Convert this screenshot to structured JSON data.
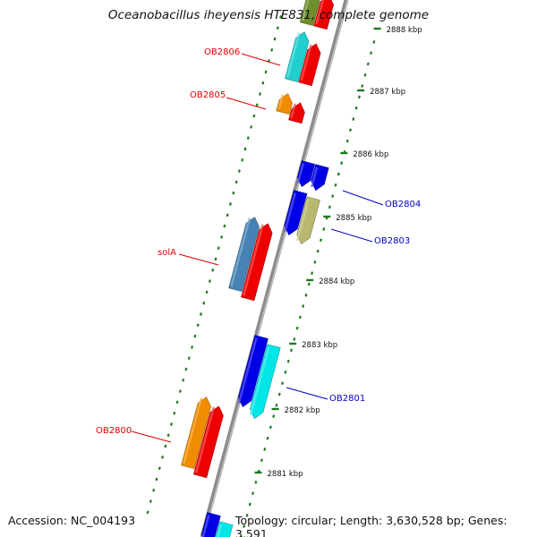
{
  "title": "Oceanobacillus iheyensis HTE831, complete genome",
  "footer": {
    "accession": "Accession: NC_004193",
    "summary": "Topology: circular; Length: 3,630,528 bp; Genes: 3,591"
  },
  "colors": {
    "backbone": "#8c8c8c",
    "tick": "#1e7a1e",
    "forward_label": "#e00000",
    "reverse_label": "#0000c8",
    "scale_text": "#111111"
  },
  "scale_labels": [
    "2888 kbp",
    "2887 kbp",
    "2886 kbp",
    "2885 kbp",
    "2884 kbp",
    "2883 kbp",
    "2882 kbp",
    "2881 kbp"
  ],
  "genes": [
    {
      "strand": "forward",
      "lane": 1,
      "start": 0.0,
      "end": 0.06,
      "color": "#6f8f2a"
    },
    {
      "strand": "forward",
      "lane": 2,
      "start": 0.0,
      "end": 0.06,
      "color": "#ee0000"
    },
    {
      "strand": "forward",
      "lane": 1,
      "start": 0.075,
      "end": 0.165,
      "color": "#22cfcf"
    },
    {
      "strand": "forward",
      "lane": 2,
      "start": 0.09,
      "end": 0.165,
      "color": "#ee0000"
    },
    {
      "strand": "forward",
      "lane": 1,
      "start": 0.19,
      "end": 0.225,
      "color": "#f08c00"
    },
    {
      "strand": "forward",
      "lane": 2,
      "start": 0.2,
      "end": 0.235,
      "color": "#ee0000"
    },
    {
      "strand": "reverse",
      "lane": 1,
      "start": 0.3,
      "end": 0.345,
      "color": "#0000e6"
    },
    {
      "strand": "reverse",
      "lane": 2,
      "start": 0.3,
      "end": 0.345,
      "color": "#0000e6"
    },
    {
      "strand": "reverse",
      "lane": 1,
      "start": 0.355,
      "end": 0.435,
      "color": "#0000e6"
    },
    {
      "strand": "reverse",
      "lane": 2,
      "start": 0.36,
      "end": 0.445,
      "color": "#b8b870"
    },
    {
      "strand": "forward",
      "lane": 1,
      "start": 0.42,
      "end": 0.555,
      "color": "#4682b4"
    },
    {
      "strand": "forward",
      "lane": 2,
      "start": 0.425,
      "end": 0.565,
      "color": "#ee0000"
    },
    {
      "strand": "reverse",
      "lane": 1,
      "start": 0.625,
      "end": 0.755,
      "color": "#0000e6"
    },
    {
      "strand": "reverse",
      "lane": 2,
      "start": 0.635,
      "end": 0.77,
      "color": "#00e6e6"
    },
    {
      "strand": "forward",
      "lane": 1,
      "start": 0.755,
      "end": 0.885,
      "color": "#f08c00"
    },
    {
      "strand": "forward",
      "lane": 2,
      "start": 0.765,
      "end": 0.895,
      "color": "#ee0000"
    },
    {
      "strand": "reverse",
      "lane": 1,
      "start": 0.955,
      "end": 1.01,
      "color": "#0000e6"
    },
    {
      "strand": "reverse",
      "lane": 2,
      "start": 0.965,
      "end": 1.01,
      "color": "#00e6e6"
    }
  ],
  "labels": [
    {
      "text": "OB2806",
      "strand": "forward"
    },
    {
      "text": "OB2805",
      "strand": "forward"
    },
    {
      "text": "OB2804",
      "strand": "reverse"
    },
    {
      "text": "OB2803",
      "strand": "reverse"
    },
    {
      "text": "solA",
      "strand": "forward"
    },
    {
      "text": "OB2801",
      "strand": "reverse"
    },
    {
      "text": "OB2800",
      "strand": "forward"
    }
  ]
}
